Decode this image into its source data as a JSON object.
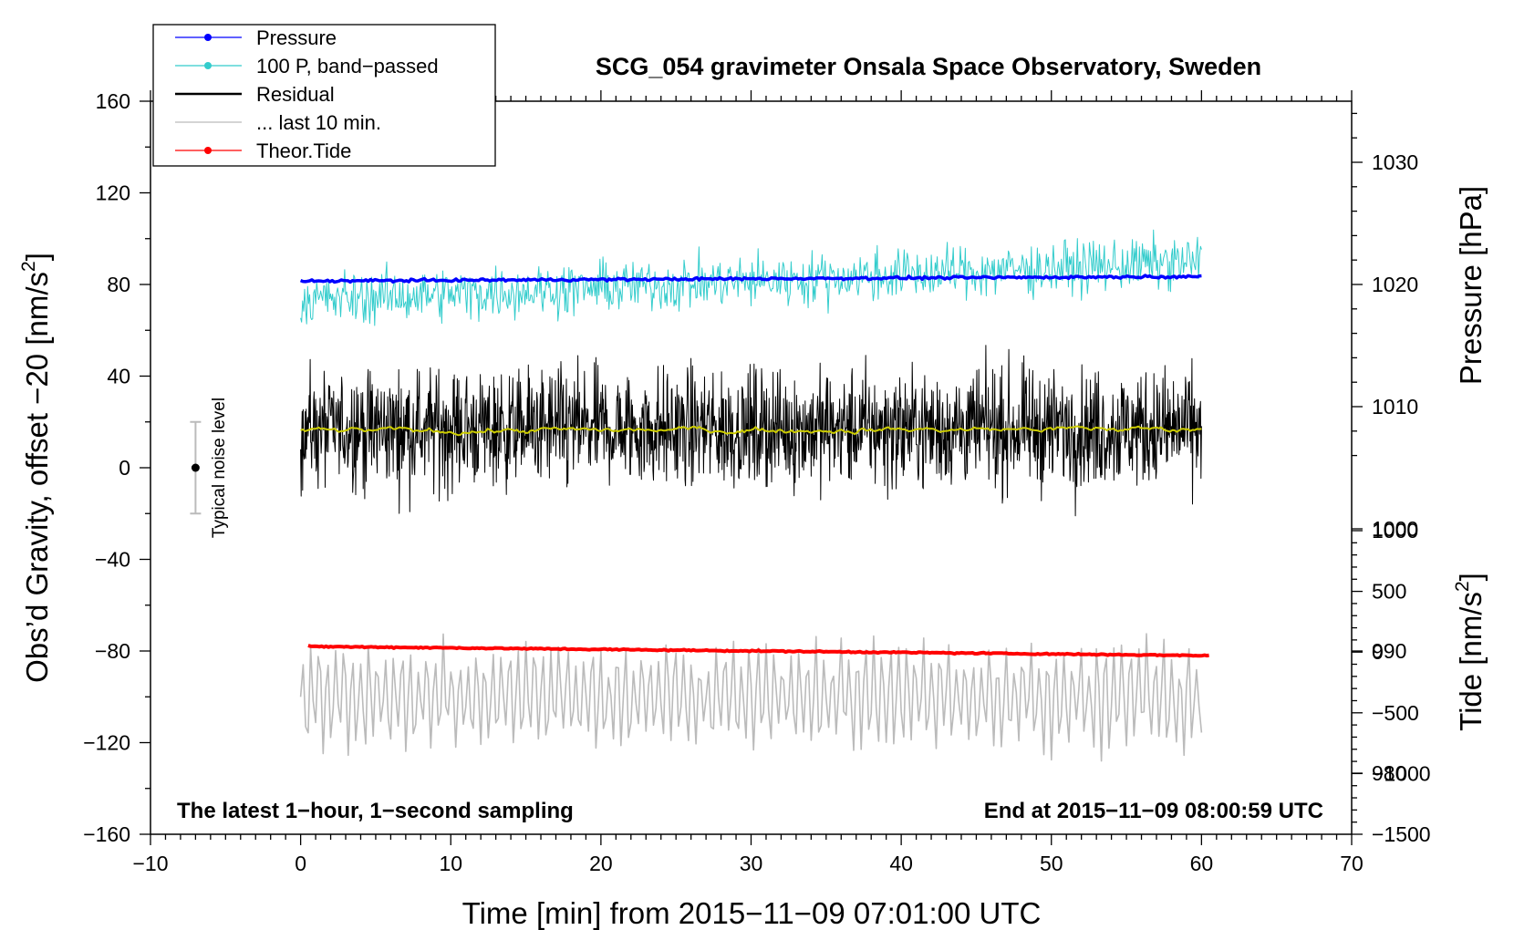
{
  "chart_data": {
    "type": "line",
    "title": "SCG_054 gravimeter Onsala Space Observatory, Sweden",
    "xlabel": "Time [min] from 2015−11−09 07:01:00 UTC",
    "ylabel_left_main": "Obs’d Gravity, offset −20 [nm/s",
    "ylabel_left_sup": "2",
    "ylabel_left_end": "]",
    "ylabel_right_top": "Pressure [hPa]",
    "ylabel_right_bottom_main": "Tide [nm/s",
    "ylabel_right_bottom_sup": "2",
    "ylabel_right_bottom_end": "]",
    "xlim": [
      -10,
      70
    ],
    "ylim_left": [
      -160,
      160
    ],
    "ylim_pressure": [
      975,
      1035
    ],
    "ylim_tide": [
      -1500,
      1000
    ],
    "xticks": [
      -10,
      0,
      10,
      20,
      30,
      40,
      50,
      60,
      70
    ],
    "xtick_labels": [
      "−10",
      "0",
      "10",
      "20",
      "30",
      "40",
      "50",
      "60",
      "70"
    ],
    "yticks_left": [
      160,
      120,
      80,
      40,
      0,
      -40,
      -80,
      -120,
      -160
    ],
    "ytick_labels_left": [
      "160",
      "120",
      "80",
      "40",
      "0",
      "−40",
      "−80",
      "−120",
      "−160"
    ],
    "yticks_pressure": [
      1030,
      1020,
      1010,
      1000,
      990,
      980
    ],
    "ytick_labels_pressure": [
      "1030",
      "1020",
      "1010",
      "1000",
      "990",
      "980"
    ],
    "yticks_tide": [
      1000,
      500,
      0,
      -500,
      -1000,
      -1500
    ],
    "ytick_labels_tide": [
      "1000",
      "500",
      "0",
      "−500",
      "−1000",
      "−1500"
    ],
    "note_left": "The latest 1−hour, 1−second sampling",
    "note_right": "End at 2015−11−09 08:00:59 UTC",
    "noise_label": "Typical noise level",
    "noise_bar": {
      "x": -7,
      "center": 0,
      "half_range": 20
    },
    "legend": [
      {
        "label": "Pressure",
        "color": "#0000ff",
        "marker": true
      },
      {
        "label": "100 P, band−passed",
        "color": "#33cccc",
        "marker": true
      },
      {
        "label": "Residual",
        "color": "#000000",
        "marker": false
      },
      {
        "label": "... last 10 min.",
        "color": "#bbbbbb",
        "marker": false
      },
      {
        "label": "Theor.Tide",
        "color": "#ff0000",
        "marker": true
      }
    ],
    "series": [
      {
        "name": "Pressure",
        "axis": "left",
        "color": "#0000ff",
        "x_range": [
          0,
          60
        ],
        "start": 81.5,
        "end": 83.5,
        "noise": 0.4,
        "width": 3.5
      },
      {
        "name": "100 P, band-passed",
        "axis": "left",
        "color": "#33cccc",
        "x_range": [
          0,
          60
        ],
        "start": 73,
        "end": 90,
        "noise": 8,
        "width": 1
      },
      {
        "name": "Residual",
        "axis": "left",
        "color": "#000000",
        "x_range": [
          0,
          60
        ],
        "start": 17,
        "end": 17,
        "noise": 18,
        "width": 1
      },
      {
        "name": "Residual smoothed",
        "axis": "left",
        "color": "#cccc00",
        "x_range": [
          0,
          60
        ],
        "start": 16,
        "end": 17,
        "noise": 1.2,
        "width": 2
      },
      {
        "name": "... last 10 min.",
        "axis": "left",
        "color": "#bbbbbb",
        "x_range": [
          0,
          60
        ],
        "start": -100,
        "end": -100,
        "noise": 22,
        "width": 1.6
      },
      {
        "name": "Theor.Tide",
        "axis": "left",
        "color": "#ff0000",
        "x_range": [
          0.5,
          60.5
        ],
        "start": -78,
        "end": -82,
        "noise": 0.2,
        "width": 4
      }
    ],
    "colors": {
      "axis": "#000000",
      "noise_bar": "#bbbbbb"
    }
  }
}
